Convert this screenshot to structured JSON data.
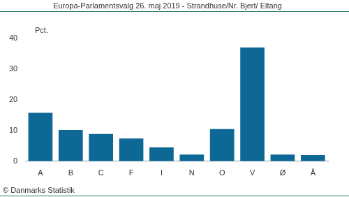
{
  "chart_data": {
    "type": "bar",
    "title": "Europa-Parlamentsvalg 26. maj 2019 - Strandhuse/Nr. Bjert/ Eltang",
    "y_label": "Pct.",
    "source": "© Danmarks Statistik",
    "categories": [
      "A",
      "B",
      "C",
      "F",
      "I",
      "N",
      "O",
      "V",
      "Ø",
      "Å"
    ],
    "values": [
      15.8,
      10.2,
      8.9,
      7.4,
      4.5,
      2.2,
      10.5,
      37.1,
      2.2,
      2.0
    ],
    "color": "#0e6896",
    "ylim": [
      0,
      40
    ],
    "yticks": [
      0,
      10,
      20,
      30,
      40
    ],
    "grid": false
  }
}
